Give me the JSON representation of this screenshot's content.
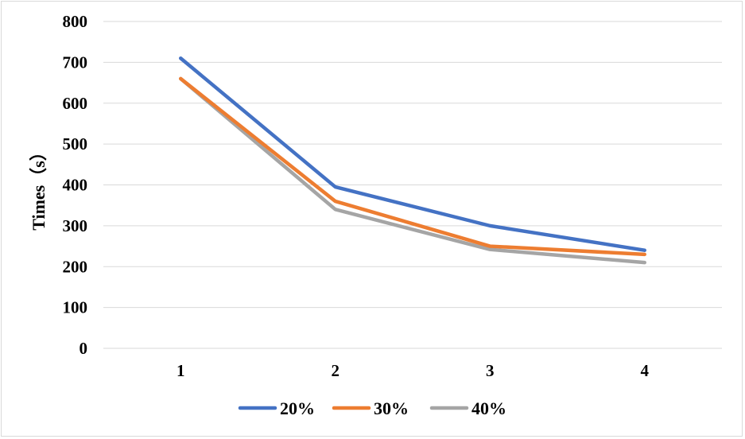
{
  "chart_data": {
    "type": "line",
    "x": [
      1,
      2,
      3,
      4
    ],
    "series": [
      {
        "name": "20%",
        "values": [
          710,
          395,
          300,
          240
        ],
        "color": "#4472C4"
      },
      {
        "name": "30%",
        "values": [
          660,
          360,
          250,
          230
        ],
        "color": "#ED7D31"
      },
      {
        "name": "40%",
        "values": [
          660,
          340,
          242,
          210
        ],
        "color": "#A5A5A5"
      }
    ],
    "ylabel": "Times（s）",
    "ylim": [
      0,
      800
    ],
    "yticks": [
      0,
      100,
      200,
      300,
      400,
      500,
      600,
      700,
      800
    ],
    "xticks": [
      "1",
      "2",
      "3",
      "4"
    ],
    "grid": true,
    "legend_position": "bottom"
  }
}
